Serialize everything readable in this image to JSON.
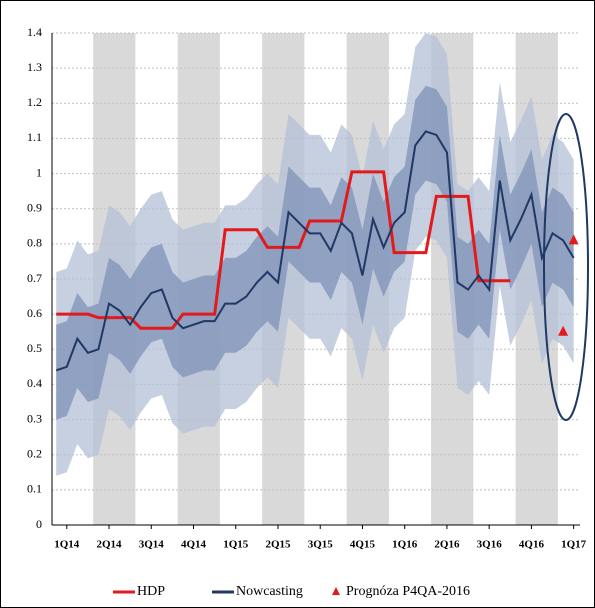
{
  "chart_data": {
    "type": "line",
    "xlim": [
      -0.4,
      49.6
    ],
    "xticks": [
      {
        "value": 1,
        "label": "1Q14"
      },
      {
        "value": 5,
        "label": "2Q14"
      },
      {
        "value": 9,
        "label": "3Q14"
      },
      {
        "value": 13,
        "label": "4Q14"
      },
      {
        "value": 17,
        "label": "1Q15"
      },
      {
        "value": 21,
        "label": "2Q15"
      },
      {
        "value": 25,
        "label": "3Q15"
      },
      {
        "value": 29,
        "label": "4Q15"
      },
      {
        "value": 33,
        "label": "1Q16"
      },
      {
        "value": 37,
        "label": "2Q16"
      },
      {
        "value": 41,
        "label": "3Q16"
      },
      {
        "value": 45,
        "label": "4Q16"
      },
      {
        "value": 49,
        "label": "1Q17"
      }
    ],
    "ylim": [
      0,
      1.4
    ],
    "yticks": [
      0,
      0.1,
      0.2,
      0.3,
      0.4,
      0.5,
      0.6,
      0.7,
      0.8,
      0.9,
      1,
      1.1,
      1.2,
      1.3,
      1.4
    ],
    "grid": true,
    "series": [
      {
        "name": "HDP",
        "color": "#e31a1c",
        "x": [
          0,
          3,
          4,
          7,
          8,
          11,
          12,
          15,
          16,
          19,
          20,
          23,
          24,
          27,
          28,
          31,
          32,
          35,
          36,
          39,
          40,
          43
        ],
        "values": [
          0.6,
          0.6,
          0.59,
          0.59,
          0.56,
          0.56,
          0.6,
          0.6,
          0.84,
          0.84,
          0.79,
          0.79,
          0.865,
          0.865,
          1.005,
          1.005,
          0.775,
          0.775,
          0.935,
          0.935,
          0.695,
          0.695
        ]
      },
      {
        "name": "Nowcasting",
        "color": "#1f3864",
        "band_colors": [
          "#b4c0d6",
          "#7d92b8"
        ],
        "x": [
          0,
          1,
          2,
          3,
          4,
          5,
          6,
          7,
          8,
          9,
          10,
          11,
          12,
          13,
          14,
          15,
          16,
          17,
          18,
          19,
          20,
          21,
          22,
          23,
          24,
          25,
          26,
          27,
          28,
          29,
          30,
          31,
          32,
          33,
          34,
          35,
          36,
          37,
          38,
          39,
          40,
          41,
          42,
          43,
          44,
          45,
          46,
          47,
          48,
          49
        ],
        "values": [
          0.44,
          0.45,
          0.53,
          0.49,
          0.5,
          0.63,
          0.61,
          0.57,
          0.62,
          0.66,
          0.67,
          0.59,
          0.56,
          0.57,
          0.58,
          0.58,
          0.63,
          0.63,
          0.65,
          0.69,
          0.72,
          0.69,
          0.89,
          0.86,
          0.83,
          0.83,
          0.78,
          0.86,
          0.83,
          0.71,
          0.87,
          0.79,
          0.86,
          0.89,
          1.08,
          1.12,
          1.11,
          1.06,
          0.69,
          0.67,
          0.71,
          0.67,
          0.98,
          0.81,
          0.87,
          0.94,
          0.76,
          0.83,
          0.81,
          0.76
        ],
        "outer_lower": [
          0.14,
          0.15,
          0.23,
          0.19,
          0.2,
          0.33,
          0.31,
          0.27,
          0.32,
          0.36,
          0.37,
          0.29,
          0.26,
          0.27,
          0.28,
          0.28,
          0.33,
          0.33,
          0.35,
          0.39,
          0.42,
          0.39,
          0.59,
          0.56,
          0.53,
          0.53,
          0.48,
          0.56,
          0.53,
          0.41,
          0.57,
          0.49,
          0.56,
          0.59,
          0.78,
          0.82,
          0.81,
          0.76,
          0.39,
          0.37,
          0.41,
          0.37,
          0.68,
          0.51,
          0.57,
          0.64,
          0.46,
          0.53,
          0.51,
          0.46
        ],
        "outer_upper": [
          0.72,
          0.73,
          0.81,
          0.77,
          0.78,
          0.91,
          0.89,
          0.85,
          0.9,
          0.94,
          0.95,
          0.87,
          0.84,
          0.85,
          0.86,
          0.86,
          0.91,
          0.91,
          0.93,
          0.97,
          1.0,
          0.97,
          1.17,
          1.14,
          1.11,
          1.11,
          1.06,
          1.14,
          1.11,
          0.99,
          1.15,
          1.07,
          1.14,
          1.17,
          1.36,
          1.4,
          1.39,
          1.34,
          0.97,
          0.95,
          0.99,
          0.95,
          1.26,
          1.09,
          1.15,
          1.22,
          1.04,
          1.11,
          1.09,
          1.04
        ],
        "inner_lower": [
          0.3,
          0.31,
          0.39,
          0.35,
          0.36,
          0.49,
          0.47,
          0.43,
          0.48,
          0.52,
          0.53,
          0.45,
          0.42,
          0.43,
          0.44,
          0.44,
          0.49,
          0.49,
          0.51,
          0.55,
          0.58,
          0.55,
          0.75,
          0.72,
          0.69,
          0.69,
          0.64,
          0.72,
          0.69,
          0.57,
          0.73,
          0.65,
          0.72,
          0.75,
          0.94,
          0.98,
          0.97,
          0.92,
          0.55,
          0.53,
          0.57,
          0.53,
          0.84,
          0.67,
          0.73,
          0.8,
          0.62,
          0.69,
          0.67,
          0.62
        ],
        "inner_upper": [
          0.57,
          0.58,
          0.66,
          0.62,
          0.63,
          0.76,
          0.74,
          0.7,
          0.75,
          0.79,
          0.8,
          0.72,
          0.69,
          0.7,
          0.71,
          0.71,
          0.76,
          0.76,
          0.78,
          0.82,
          0.85,
          0.82,
          1.02,
          0.99,
          0.96,
          0.96,
          0.91,
          0.99,
          0.96,
          0.84,
          1.0,
          0.92,
          0.99,
          1.02,
          1.21,
          1.25,
          1.24,
          1.19,
          0.82,
          0.8,
          0.84,
          0.8,
          1.11,
          0.94,
          1.0,
          1.07,
          0.89,
          0.96,
          0.94,
          0.89
        ]
      },
      {
        "name": "Prognóza P4QA-2016",
        "color": "#e31a1c",
        "marker": "triangle",
        "x": [
          48,
          49
        ],
        "values": [
          0.55,
          0.81
        ]
      }
    ]
  }
}
